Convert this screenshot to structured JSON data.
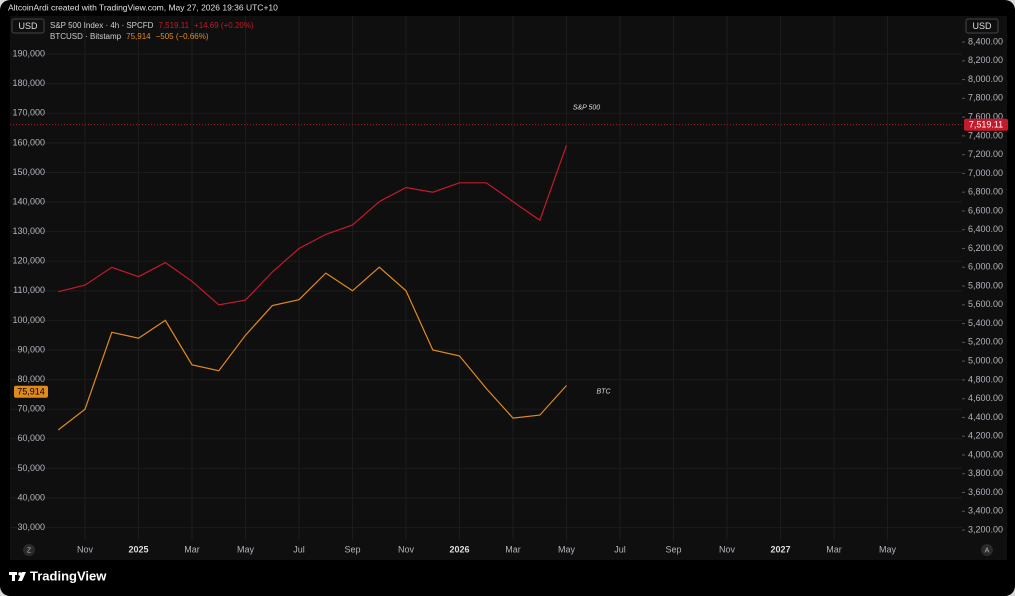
{
  "header": {
    "caption": "AltcoinArdi created with TradingView.com, May 27, 2026 19:36 UTC+10"
  },
  "chart_data": {
    "type": "line",
    "x": [
      "2024-10",
      "2024-11",
      "2024-12",
      "2025-01",
      "2025-02",
      "2025-03",
      "2025-04",
      "2025-05",
      "2025-06",
      "2025-07",
      "2025-08",
      "2025-09",
      "2025-10",
      "2025-11",
      "2025-12",
      "2026-01",
      "2026-02",
      "2026-03",
      "2026-04",
      "2026-05"
    ],
    "xlim": [
      "2024-09",
      "2027-07"
    ],
    "xticks": [
      {
        "value": "2024-11",
        "label": "Nov"
      },
      {
        "value": "2025-01",
        "label": "2025"
      },
      {
        "value": "2025-03",
        "label": "Mar"
      },
      {
        "value": "2025-05",
        "label": "May"
      },
      {
        "value": "2025-07",
        "label": "Jul"
      },
      {
        "value": "2025-09",
        "label": "Sep"
      },
      {
        "value": "2025-11",
        "label": "Nov"
      },
      {
        "value": "2026-01",
        "label": "2026"
      },
      {
        "value": "2026-03",
        "label": "Mar"
      },
      {
        "value": "2026-05",
        "label": "May"
      },
      {
        "value": "2026-07",
        "label": "Jul"
      },
      {
        "value": "2026-09",
        "label": "Sep"
      },
      {
        "value": "2026-11",
        "label": "Nov"
      },
      {
        "value": "2027-01",
        "label": "2027"
      },
      {
        "value": "2027-03",
        "label": "Mar"
      },
      {
        "value": "2027-05",
        "label": "May"
      }
    ],
    "y_unit": "USD",
    "y2_unit": "USD",
    "ylim": [
      25800,
      202200
    ],
    "yticks": [
      {
        "value": 30000,
        "label": "30,000"
      },
      {
        "value": 40000,
        "label": "40,000"
      },
      {
        "value": 50000,
        "label": "50,000"
      },
      {
        "value": 60000,
        "label": "60,000"
      },
      {
        "value": 70000,
        "label": "70,000"
      },
      {
        "value": 80000,
        "label": "80,000"
      },
      {
        "value": 90000,
        "label": "90,000"
      },
      {
        "value": 100000,
        "label": "100,000"
      },
      {
        "value": 110000,
        "label": "110,000"
      },
      {
        "value": 120000,
        "label": "120,000"
      },
      {
        "value": 130000,
        "label": "130,000"
      },
      {
        "value": 140000,
        "label": "140,000"
      },
      {
        "value": 150000,
        "label": "150,000"
      },
      {
        "value": 160000,
        "label": "160,000"
      },
      {
        "value": 170000,
        "label": "170,000"
      },
      {
        "value": 180000,
        "label": "180,000"
      },
      {
        "value": 190000,
        "label": "190,000"
      }
    ],
    "y2lim": [
      3094,
      8656
    ],
    "y2ticks": [
      {
        "value": 3200,
        "label": "3,200.00"
      },
      {
        "value": 3400,
        "label": "3,400.00"
      },
      {
        "value": 3600,
        "label": "3,600.00"
      },
      {
        "value": 3800,
        "label": "3,800.00"
      },
      {
        "value": 4000,
        "label": "4,000.00"
      },
      {
        "value": 4200,
        "label": "4,200.00"
      },
      {
        "value": 4400,
        "label": "4,400.00"
      },
      {
        "value": 4600,
        "label": "4,600.00"
      },
      {
        "value": 4800,
        "label": "4,800.00"
      },
      {
        "value": 5000,
        "label": "5,000.00"
      },
      {
        "value": 5200,
        "label": "5,200.00"
      },
      {
        "value": 5400,
        "label": "5,400.00"
      },
      {
        "value": 5600,
        "label": "5,600.00"
      },
      {
        "value": 5800,
        "label": "5,800.00"
      },
      {
        "value": 6000,
        "label": "6,000.00"
      },
      {
        "value": 6200,
        "label": "6,200.00"
      },
      {
        "value": 6400,
        "label": "6,400.00"
      },
      {
        "value": 6600,
        "label": "6,600.00"
      },
      {
        "value": 6800,
        "label": "6,800.00"
      },
      {
        "value": 7000,
        "label": "7,000.00"
      },
      {
        "value": 7200,
        "label": "7,200.00"
      },
      {
        "value": 7400,
        "label": "7,400.00"
      },
      {
        "value": 7600,
        "label": "7,600.00"
      },
      {
        "value": 7800,
        "label": "7,800.00"
      },
      {
        "value": 8000,
        "label": "8,000.00"
      },
      {
        "value": 8200,
        "label": "8,200.00"
      },
      {
        "value": 8400,
        "label": "8,400.00"
      }
    ],
    "grid": true,
    "series": [
      {
        "name": "S&P 500 Index · 4h · SPCFD",
        "color": "#c41a2c",
        "axis": "y2",
        "annotation": "S&P 500",
        "price_line": true,
        "values": [
          5740,
          5810,
          6000,
          5900,
          6050,
          5850,
          5600,
          5650,
          5950,
          6200,
          6350,
          6450,
          6700,
          6850,
          6800,
          6900,
          6900,
          6700,
          6500,
          7300
        ],
        "last": {
          "value": 7519.11,
          "label": "7,519.11"
        },
        "change": "+14.69 (+0.20%)"
      },
      {
        "name": "BTCUSD · Bitstamp",
        "color": "#e08a1e",
        "axis": "y",
        "annotation": "BTC",
        "values": [
          63000,
          70000,
          96000,
          94000,
          100000,
          85000,
          83000,
          95000,
          105000,
          107000,
          116000,
          110000,
          118000,
          110000,
          90000,
          88000,
          77000,
          67000,
          68000,
          78000
        ],
        "last": {
          "value": 75914,
          "label": "75,914"
        },
        "change": "−505 (−0.66%)"
      }
    ]
  },
  "controls": {
    "left": "Z",
    "right": "A"
  },
  "footer": {
    "brand": "TradingView"
  }
}
